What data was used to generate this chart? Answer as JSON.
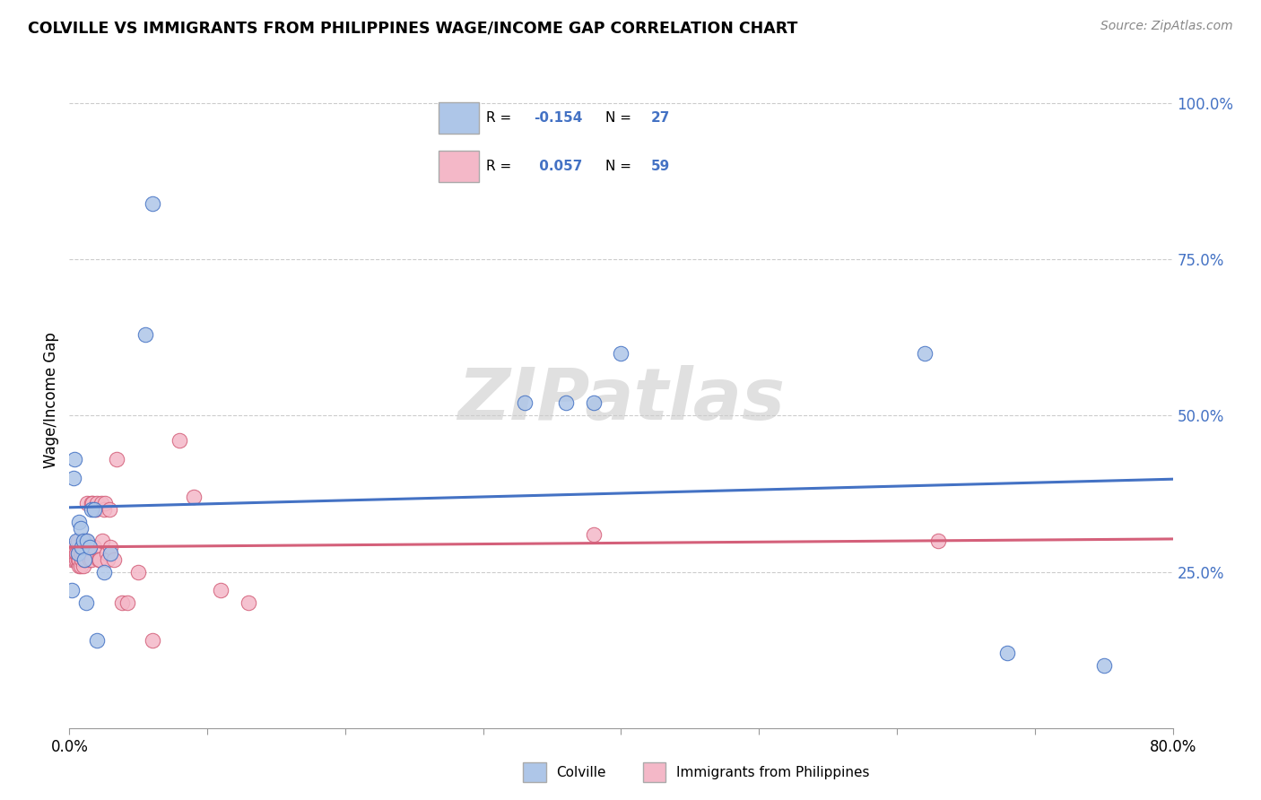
{
  "title": "COLVILLE VS IMMIGRANTS FROM PHILIPPINES WAGE/INCOME GAP CORRELATION CHART",
  "source": "Source: ZipAtlas.com",
  "ylabel": "Wage/Income Gap",
  "yticks_right": [
    "25.0%",
    "50.0%",
    "75.0%",
    "100.0%"
  ],
  "yticks_right_vals": [
    0.25,
    0.5,
    0.75,
    1.0
  ],
  "blue_color": "#aec6e8",
  "pink_color": "#f4b8c8",
  "blue_line_color": "#4472c4",
  "pink_line_color": "#d4607a",
  "colville_x": [
    0.002,
    0.003,
    0.004,
    0.005,
    0.006,
    0.007,
    0.008,
    0.009,
    0.01,
    0.011,
    0.012,
    0.013,
    0.015,
    0.016,
    0.018,
    0.02,
    0.025,
    0.03,
    0.055,
    0.06,
    0.33,
    0.36,
    0.38,
    0.4,
    0.62,
    0.68,
    0.75
  ],
  "colville_y": [
    0.22,
    0.4,
    0.43,
    0.3,
    0.28,
    0.33,
    0.32,
    0.29,
    0.3,
    0.27,
    0.2,
    0.3,
    0.29,
    0.35,
    0.35,
    0.14,
    0.25,
    0.28,
    0.63,
    0.84,
    0.52,
    0.52,
    0.52,
    0.6,
    0.6,
    0.12,
    0.1
  ],
  "phil_x": [
    0.001,
    0.002,
    0.002,
    0.003,
    0.003,
    0.004,
    0.004,
    0.005,
    0.005,
    0.005,
    0.006,
    0.006,
    0.006,
    0.007,
    0.007,
    0.007,
    0.008,
    0.008,
    0.009,
    0.009,
    0.01,
    0.01,
    0.011,
    0.011,
    0.012,
    0.012,
    0.013,
    0.013,
    0.014,
    0.015,
    0.015,
    0.016,
    0.016,
    0.017,
    0.018,
    0.019,
    0.02,
    0.021,
    0.022,
    0.023,
    0.024,
    0.025,
    0.026,
    0.027,
    0.028,
    0.029,
    0.03,
    0.032,
    0.034,
    0.038,
    0.042,
    0.05,
    0.06,
    0.08,
    0.09,
    0.11,
    0.13,
    0.38,
    0.63
  ],
  "phil_y": [
    0.28,
    0.27,
    0.28,
    0.29,
    0.28,
    0.28,
    0.27,
    0.27,
    0.28,
    0.28,
    0.27,
    0.3,
    0.28,
    0.26,
    0.28,
    0.27,
    0.26,
    0.28,
    0.27,
    0.28,
    0.26,
    0.28,
    0.27,
    0.29,
    0.3,
    0.28,
    0.36,
    0.28,
    0.29,
    0.27,
    0.28,
    0.36,
    0.27,
    0.36,
    0.29,
    0.35,
    0.36,
    0.27,
    0.27,
    0.36,
    0.3,
    0.35,
    0.36,
    0.28,
    0.27,
    0.35,
    0.29,
    0.27,
    0.43,
    0.2,
    0.2,
    0.25,
    0.14,
    0.46,
    0.37,
    0.22,
    0.2,
    0.31,
    0.3
  ],
  "watermark": "ZIPatlas",
  "xmin": 0.0,
  "xmax": 0.8,
  "ymin": 0.0,
  "ymax": 1.05,
  "blue_R": -0.154,
  "blue_N": 27,
  "pink_R": 0.057,
  "pink_N": 59
}
